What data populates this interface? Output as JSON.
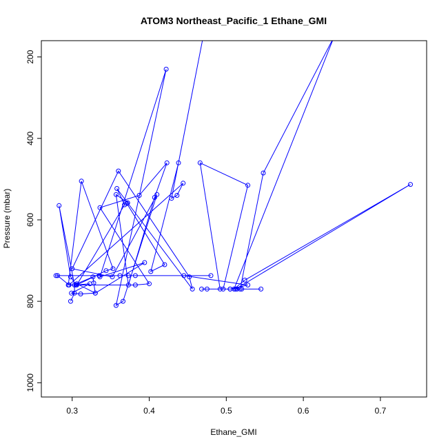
{
  "chart_data": {
    "type": "line",
    "title": "ATOM3 Northeast_Pacific_1 Ethane_GMI",
    "xlabel": "Ethane_GMI",
    "ylabel": "Pressure (mbar)",
    "xlim": [
      0.26,
      0.76
    ],
    "ylim": [
      1035,
      160
    ],
    "y_inverted": true,
    "x_ticks": [
      0.3,
      0.4,
      0.5,
      0.6,
      0.7
    ],
    "x_tick_labels": [
      "0.3",
      "0.4",
      "0.5",
      "0.6",
      "0.7"
    ],
    "y_ticks": [
      200,
      400,
      600,
      800,
      1000
    ],
    "y_tick_labels": [
      "200",
      "400",
      "600",
      "800",
      "1000"
    ],
    "series_color": "#0000ff",
    "marker": "open-circle",
    "grid": false,
    "legend": "none",
    "series": [
      {
        "x": [
          0.298,
          0.303,
          0.303,
          0.283,
          0.298,
          0.305,
          0.323,
          0.299,
          0.311,
          0.33,
          0.328,
          0.327,
          0.306,
          0.33,
          0.394,
          0.336,
          0.422,
          0.357,
          0.366,
          0.41,
          0.352,
          0.3,
          0.36,
          0.452,
          0.456,
          0.358,
          0.368,
          0.306,
          0.344,
          0.353,
          0.312,
          0.295,
          0.382,
          0.4,
          0.336,
          0.387,
          0.423,
          0.407,
          0.373,
          0.357,
          0.372,
          0.371,
          0.42,
          0.402,
          0.438,
          0.47,
          0.429,
          0.436,
          0.444,
          0.296,
          0.281,
          0.279,
          0.48,
          0.335,
          0.362,
          0.373,
          0.382,
          0.445,
          0.528,
          0.505,
          0.492,
          0.466,
          0.528,
          0.496,
          0.505,
          0.514,
          0.512,
          0.545,
          0.52,
          0.468,
          0.475,
          0.518,
          0.548,
          0.64,
          0.51,
          0.524,
          0.739,
          0.512
        ],
        "y": [
          800,
          780,
          760,
          565,
          740,
          760,
          757,
          780,
          782,
          780,
          755,
          740,
          757,
          780,
          705,
          740,
          230,
          810,
          800,
          538,
          740,
          720,
          480,
          740,
          770,
          523,
          563,
          760,
          725,
          720,
          505,
          760,
          760,
          757,
          570,
          540,
          460,
          545,
          760,
          538,
          558,
          560,
          710,
          727,
          460,
          150,
          547,
          540,
          510,
          760,
          737,
          737,
          737,
          737,
          737,
          737,
          737,
          737,
          760,
          770,
          770,
          460,
          515,
          770,
          770,
          770,
          770,
          770,
          770,
          770,
          770,
          770,
          485,
          150,
          770,
          748,
          513,
          770
        ]
      }
    ]
  }
}
